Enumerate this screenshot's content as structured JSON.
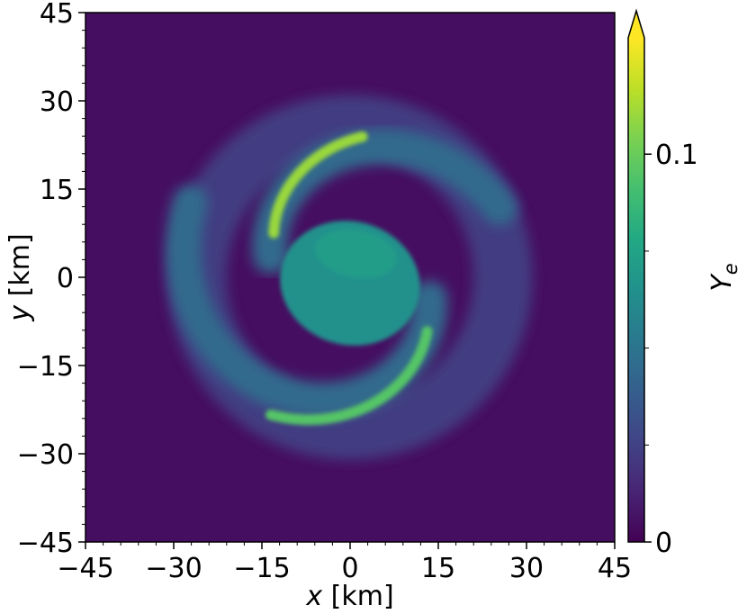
{
  "chart_data": {
    "type": "heatmap",
    "title": "",
    "xlabel_var": "x",
    "xlabel_unit": "[km]",
    "ylabel_var": "y",
    "ylabel_unit": "[km]",
    "xlim": [
      -45,
      45
    ],
    "ylim": [
      -45,
      45
    ],
    "xticks": [
      -45,
      -30,
      -15,
      0,
      15,
      30,
      45
    ],
    "yticks": [
      -45,
      -30,
      -15,
      0,
      15,
      30,
      45
    ],
    "xtick_labels": [
      "−45",
      "−30",
      "−15",
      "0",
      "15",
      "30",
      "45"
    ],
    "ytick_labels": [
      "−45",
      "−30",
      "−15",
      "0",
      "15",
      "30",
      "45"
    ],
    "colormap": "viridis",
    "background_value": 0.005,
    "colorbar": {
      "label_var": "Y",
      "label_sub": "e",
      "vmin": 0,
      "vmax": 0.13,
      "extend": "max",
      "major_ticks": [
        0,
        0.1
      ],
      "major_tick_labels": [
        "0",
        "0.1"
      ],
      "minor_ticks": [
        0.025,
        0.05,
        0.075
      ]
    },
    "features": [
      {
        "name": "core",
        "kind": "ellipse",
        "cx": 0,
        "cy": -1,
        "rx": 12,
        "ry": 10.5,
        "rotation": -15,
        "value": 0.065
      },
      {
        "name": "core-upper-lobe",
        "kind": "ellipse",
        "cx": 1,
        "cy": 4,
        "rx": 7,
        "ry": 4,
        "rotation": -10,
        "value": 0.072
      },
      {
        "name": "upper-arm",
        "kind": "arc",
        "cx": 0,
        "cy": 0,
        "r_start": 14,
        "r_end": 28,
        "theta_start": 165,
        "theta_end": 25,
        "width": 6,
        "value": 0.045
      },
      {
        "name": "lower-arm",
        "kind": "arc",
        "cx": 0,
        "cy": 0,
        "r_start": 14,
        "r_end": 30,
        "theta_start": -15,
        "theta_end": -205,
        "width": 6,
        "value": 0.045
      },
      {
        "name": "outer-halo",
        "kind": "ring",
        "cx": 0,
        "cy": 0,
        "r": 26,
        "width": 10,
        "value": 0.025
      },
      {
        "name": "bright-rim-upper",
        "kind": "arc",
        "cx": 0,
        "cy": 0,
        "r_start": 15,
        "r_end": 24,
        "theta_start": 150,
        "theta_end": 85,
        "width": 1.8,
        "value": 0.11
      },
      {
        "name": "bright-rim-lower",
        "kind": "arc",
        "cx": 0,
        "cy": 0,
        "r_start": 16,
        "r_end": 27,
        "theta_start": -35,
        "theta_end": -120,
        "width": 1.8,
        "value": 0.095
      }
    ]
  }
}
